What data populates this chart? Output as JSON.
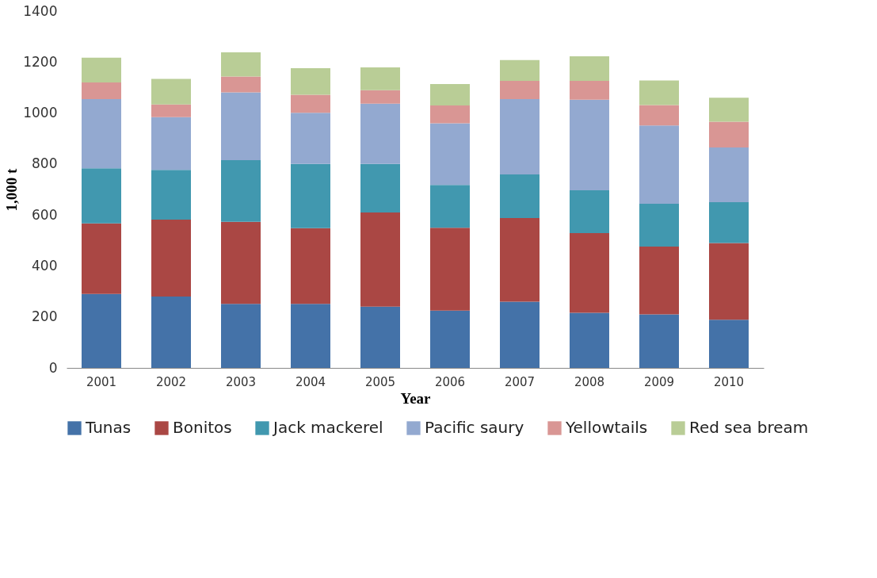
{
  "chart_data": {
    "type": "bar",
    "stacked": true,
    "xlabel": "Year",
    "ylabel": "1,000 t",
    "categories": [
      "2001",
      "2002",
      "2003",
      "2004",
      "2005",
      "2006",
      "2007",
      "2008",
      "2009",
      "2010"
    ],
    "ylim": [
      0,
      1400
    ],
    "yticks": [
      0,
      200,
      400,
      600,
      800,
      1000,
      1200,
      1400
    ],
    "grid": false,
    "legend": "bottom",
    "series": [
      {
        "name": "Tunas",
        "color": "#4472a8",
        "values": [
          290,
          280,
          251,
          251,
          240,
          225,
          260,
          216,
          210,
          189
        ]
      },
      {
        "name": "Bonitos",
        "color": "#aa4744",
        "values": [
          277,
          302,
          322,
          297,
          370,
          325,
          328,
          313,
          266,
          301
        ]
      },
      {
        "name": "Jack mackerel",
        "color": "#4198af",
        "values": [
          216,
          195,
          242,
          252,
          190,
          168,
          171,
          168,
          168,
          160
        ]
      },
      {
        "name": "Pacific saury",
        "color": "#93a9d0",
        "values": [
          272,
          207,
          266,
          201,
          237,
          242,
          296,
          355,
          307,
          215
        ]
      },
      {
        "name": "Yellowtails",
        "color": "#d99694",
        "values": [
          65,
          50,
          62,
          71,
          53,
          70,
          71,
          74,
          80,
          101
        ]
      },
      {
        "name": "Red sea bream",
        "color": "#b9cd96",
        "values": [
          97,
          100,
          95,
          104,
          89,
          84,
          82,
          97,
          97,
          94
        ]
      }
    ]
  }
}
